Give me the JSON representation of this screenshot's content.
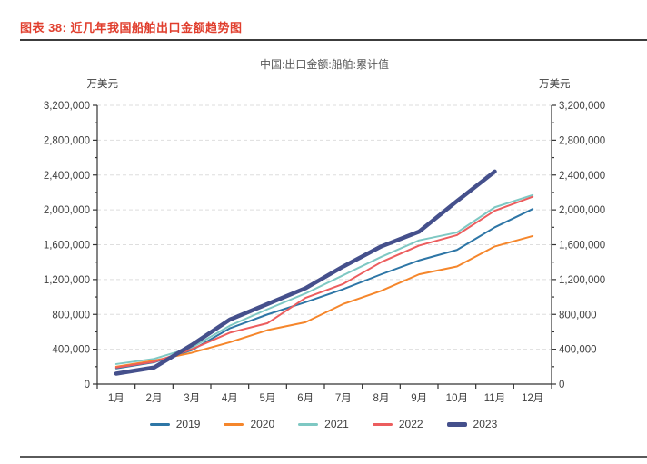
{
  "page": {
    "caption": "图表 38: 近几年我国船舶出口金额趋势图",
    "caption_color": "#E03E2D"
  },
  "chart_data": {
    "type": "line",
    "title": "中国:出口金额:船舶:累计值",
    "unit_left": "万美元",
    "unit_right": "万美元",
    "categories": [
      "1月",
      "2月",
      "3月",
      "4月",
      "5月",
      "6月",
      "7月",
      "8月",
      "9月",
      "10月",
      "11月",
      "12月"
    ],
    "y_axis": {
      "min": 0,
      "max": 3200000,
      "label_step": 400000,
      "minor_step": 200000,
      "dual": true
    },
    "grid": "dashed-horizontal",
    "legend_position": "bottom",
    "axis_color": "#333333",
    "grid_color": "#dedede",
    "tick_label_color": "#404040",
    "series": [
      {
        "name": "2019",
        "color": "#2E76A6",
        "width": 2,
        "values": [
          180000,
          250000,
          390000,
          640000,
          800000,
          940000,
          1090000,
          1260000,
          1420000,
          1540000,
          1800000,
          2010000
        ]
      },
      {
        "name": "2020",
        "color": "#F5862B",
        "width": 2,
        "values": [
          200000,
          270000,
          360000,
          480000,
          620000,
          710000,
          920000,
          1070000,
          1260000,
          1350000,
          1580000,
          1700000
        ]
      },
      {
        "name": "2021",
        "color": "#7EC8C3",
        "width": 2,
        "values": [
          230000,
          290000,
          420000,
          670000,
          860000,
          1040000,
          1250000,
          1460000,
          1650000,
          1740000,
          2030000,
          2170000
        ]
      },
      {
        "name": "2022",
        "color": "#EC5D5E",
        "width": 2,
        "values": [
          190000,
          255000,
          400000,
          590000,
          700000,
          990000,
          1150000,
          1400000,
          1590000,
          1710000,
          1990000,
          2150000
        ]
      },
      {
        "name": "2023",
        "color": "#45508C",
        "width": 4.5,
        "values": [
          120000,
          190000,
          450000,
          740000,
          920000,
          1100000,
          1350000,
          1580000,
          1750000,
          2100000,
          2440000
        ]
      }
    ]
  }
}
